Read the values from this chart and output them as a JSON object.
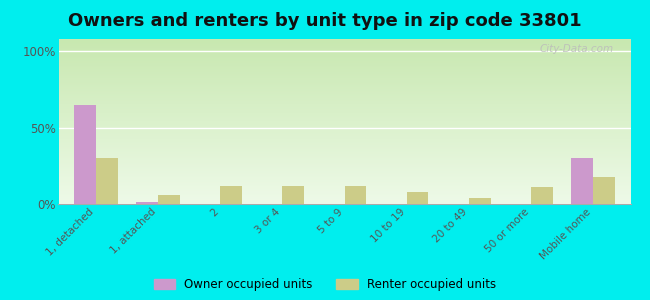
{
  "title": "Owners and renters by unit type in zip code 33801",
  "categories": [
    "1, detached",
    "1, attached",
    "2",
    "3 or 4",
    "5 to 9",
    "10 to 19",
    "20 to 49",
    "50 or more",
    "Mobile home"
  ],
  "owner_values": [
    65,
    1,
    0,
    0,
    0,
    0,
    0,
    0,
    30
  ],
  "renter_values": [
    30,
    6,
    12,
    12,
    12,
    8,
    4,
    11,
    18
  ],
  "owner_color": "#cc99cc",
  "renter_color": "#cccc88",
  "yticks": [
    0,
    50,
    100
  ],
  "ylabels": [
    "0%",
    "50%",
    "100%"
  ],
  "ylim": [
    0,
    108
  ],
  "background_color": "#00eeee",
  "legend_owner": "Owner occupied units",
  "legend_renter": "Renter occupied units",
  "watermark": "City-Data.com",
  "title_fontsize": 13,
  "bar_width": 0.35
}
